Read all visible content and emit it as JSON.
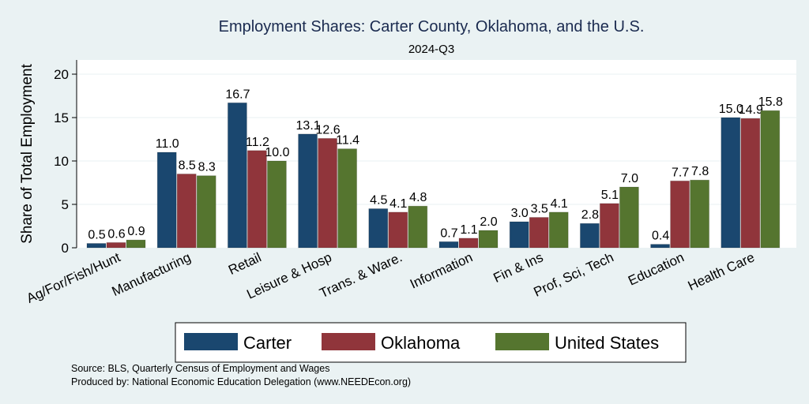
{
  "chart_data": {
    "type": "bar",
    "title": "Employment Shares: Carter County, Oklahoma, and the U.S.",
    "subtitle": "2024-Q3",
    "xlabel": "",
    "ylabel": "Share of Total Employment",
    "ylim": [
      0,
      21.5
    ],
    "yticks": [
      0,
      5,
      10,
      15,
      20
    ],
    "grid": true,
    "legend_position": "bottom",
    "categories": [
      "Ag/For/Fish/Hunt",
      "Manufacturing",
      "Retail",
      "Leisure & Hosp",
      "Trans. & Ware.",
      "Information",
      "Fin & Ins",
      "Prof, Sci, Tech",
      "Education",
      "Health Care"
    ],
    "series": [
      {
        "name": "Carter",
        "color": "#1a476f",
        "values": [
          0.5,
          11.0,
          16.7,
          13.1,
          4.5,
          0.7,
          3.0,
          2.8,
          0.4,
          15.0
        ]
      },
      {
        "name": "Oklahoma",
        "color": "#90353b",
        "values": [
          0.6,
          8.5,
          11.2,
          12.6,
          4.1,
          1.1,
          3.5,
          5.1,
          7.7,
          14.9
        ]
      },
      {
        "name": "United States",
        "color": "#55752f",
        "values": [
          0.9,
          8.3,
          10.0,
          11.4,
          4.8,
          2.0,
          4.1,
          7.0,
          7.8,
          15.8
        ]
      }
    ]
  },
  "source_lines": [
    "Source: BLS, Quarterly Census of Employment and Wages",
    "Produced by: National Economic Education Delegation (www.NEEDEcon.org)"
  ]
}
